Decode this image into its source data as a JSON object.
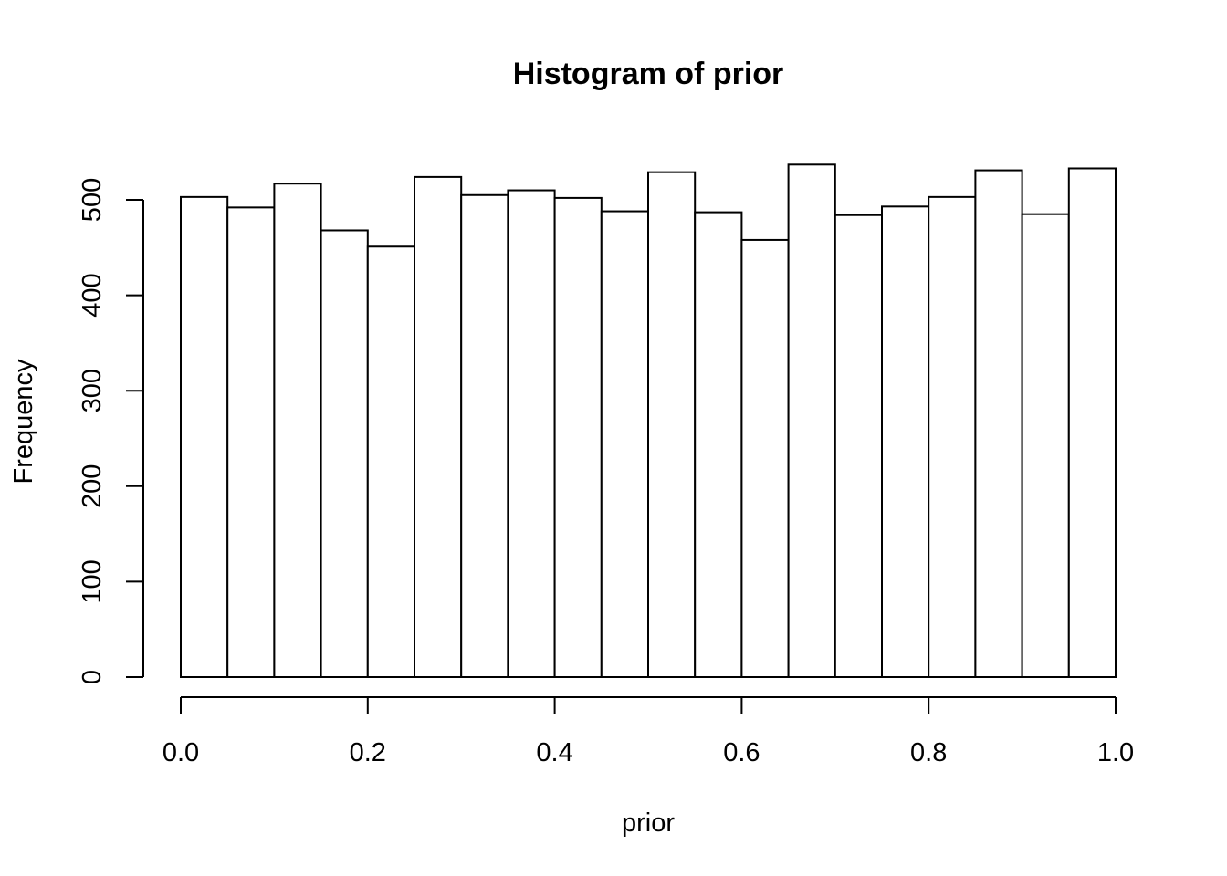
{
  "chart_data": {
    "type": "bar",
    "title": "Histogram of prior",
    "xlabel": "prior",
    "ylabel": "Frequency",
    "xlim": [
      0.0,
      1.0
    ],
    "ylim": [
      0,
      537
    ],
    "bin_width": 0.05,
    "bin_edges": [
      0.0,
      0.05,
      0.1,
      0.15,
      0.2,
      0.25,
      0.3,
      0.35,
      0.4,
      0.45,
      0.5,
      0.55,
      0.6,
      0.65,
      0.7,
      0.75,
      0.8,
      0.85,
      0.9,
      0.95,
      1.0
    ],
    "values": [
      503,
      492,
      517,
      468,
      451,
      524,
      505,
      510,
      502,
      488,
      529,
      487,
      458,
      537,
      484,
      493,
      503,
      531,
      485,
      533
    ],
    "x_ticks": [
      0.0,
      0.2,
      0.4,
      0.6,
      0.8,
      1.0
    ],
    "x_tick_labels": [
      "0.0",
      "0.2",
      "0.4",
      "0.6",
      "0.8",
      "1.0"
    ],
    "y_ticks": [
      0,
      100,
      200,
      300,
      400,
      500
    ],
    "y_tick_labels": [
      "0",
      "100",
      "200",
      "300",
      "400",
      "500"
    ],
    "grid": false,
    "bar_fill": "#ffffff",
    "bar_stroke": "#000000"
  }
}
